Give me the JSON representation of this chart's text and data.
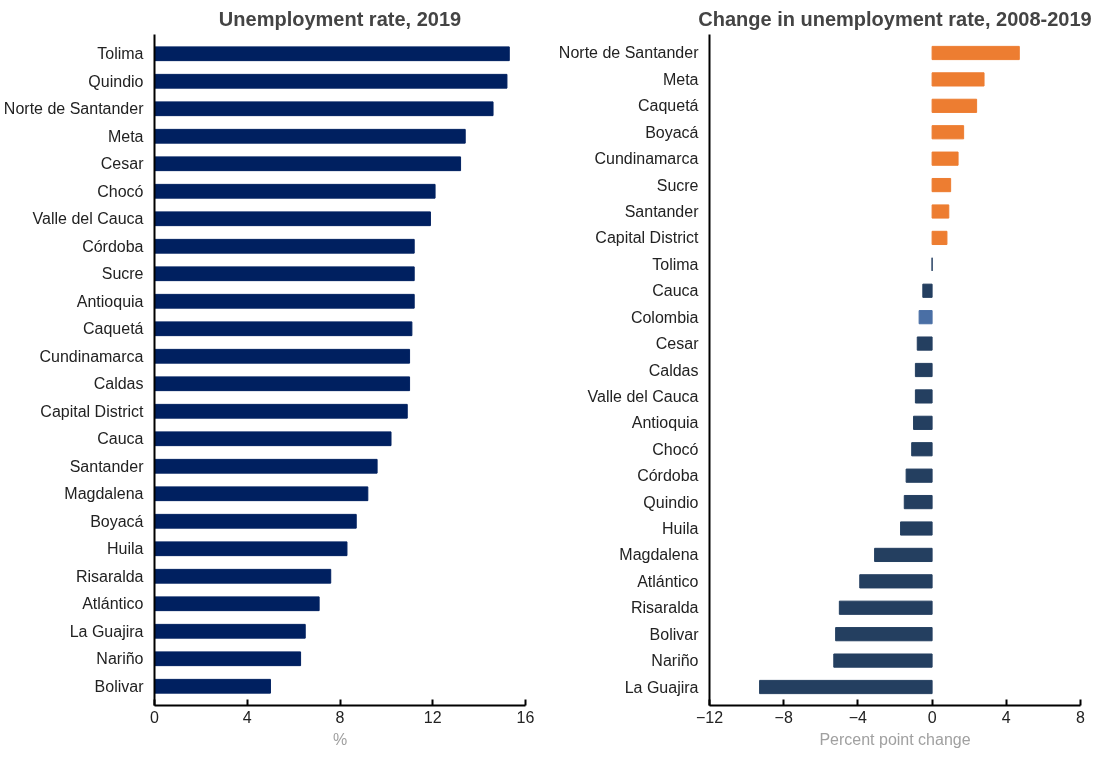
{
  "chart_data": [
    {
      "type": "bar",
      "orientation": "horizontal",
      "title": "Unemployment rate, 2019",
      "xlabel": "%",
      "categories": [
        "Tolima",
        "Quindio",
        "Norte de Santander",
        "Meta",
        "Cesar",
        "Chocó",
        "Valle del Cauca",
        "Córdoba",
        "Sucre",
        "Antioquia",
        "Caquetá",
        "Cundinamarca",
        "Caldas",
        "Capital District",
        "Cauca",
        "Santander",
        "Magdalena",
        "Boyacá",
        "Huila",
        "Risaralda",
        "Atlántico",
        "La Guajira",
        "Nariño",
        "Bolivar"
      ],
      "values": [
        15.3,
        15.2,
        14.6,
        13.4,
        13.2,
        12.1,
        11.9,
        11.2,
        11.2,
        11.2,
        11.1,
        11.0,
        11.0,
        10.9,
        10.2,
        9.6,
        9.2,
        8.7,
        8.3,
        7.6,
        7.1,
        6.5,
        6.3,
        5.0
      ],
      "color": "#002060",
      "xlim": [
        0,
        16
      ],
      "xticks": [
        0,
        4,
        8,
        12,
        16
      ],
      "grid": false
    },
    {
      "type": "bar",
      "orientation": "horizontal",
      "title": "Change in unemployment rate, 2008-2019",
      "xlabel": "Percent point change",
      "categories": [
        "Norte de Santander",
        "Meta",
        "Caquetá",
        "Boyacá",
        "Cundinamarca",
        "Sucre",
        "Santander",
        "Capital District",
        "Tolima",
        "Cauca",
        "Colombia",
        "Cesar",
        "Caldas",
        "Valle del Cauca",
        "Antioquia",
        "Chocó",
        "Córdoba",
        "Quindio",
        "Huila",
        "Magdalena",
        "Atlántico",
        "Risaralda",
        "Bolivar",
        "Nariño",
        "La Guajira"
      ],
      "values": [
        4.7,
        2.8,
        2.4,
        1.7,
        1.4,
        1.0,
        0.9,
        0.8,
        0,
        -0.5,
        -0.7,
        -0.8,
        -0.9,
        -0.9,
        -1.0,
        -1.1,
        -1.4,
        -1.5,
        -1.7,
        -3.1,
        -3.9,
        -5.0,
        -5.2,
        -5.3,
        -9.3
      ],
      "colors": [
        "#ed7d31",
        "#ed7d31",
        "#ed7d31",
        "#ed7d31",
        "#ed7d31",
        "#ed7d31",
        "#ed7d31",
        "#ed7d31",
        "#243f60",
        "#243f60",
        "#4a6fa5",
        "#243f60",
        "#243f60",
        "#243f60",
        "#243f60",
        "#243f60",
        "#243f60",
        "#243f60",
        "#243f60",
        "#243f60",
        "#243f60",
        "#243f60",
        "#243f60",
        "#243f60",
        "#243f60"
      ],
      "xlim": [
        -12,
        8
      ],
      "xticks": [
        -12,
        -8,
        -4,
        0,
        4,
        8
      ],
      "grid": false
    }
  ]
}
